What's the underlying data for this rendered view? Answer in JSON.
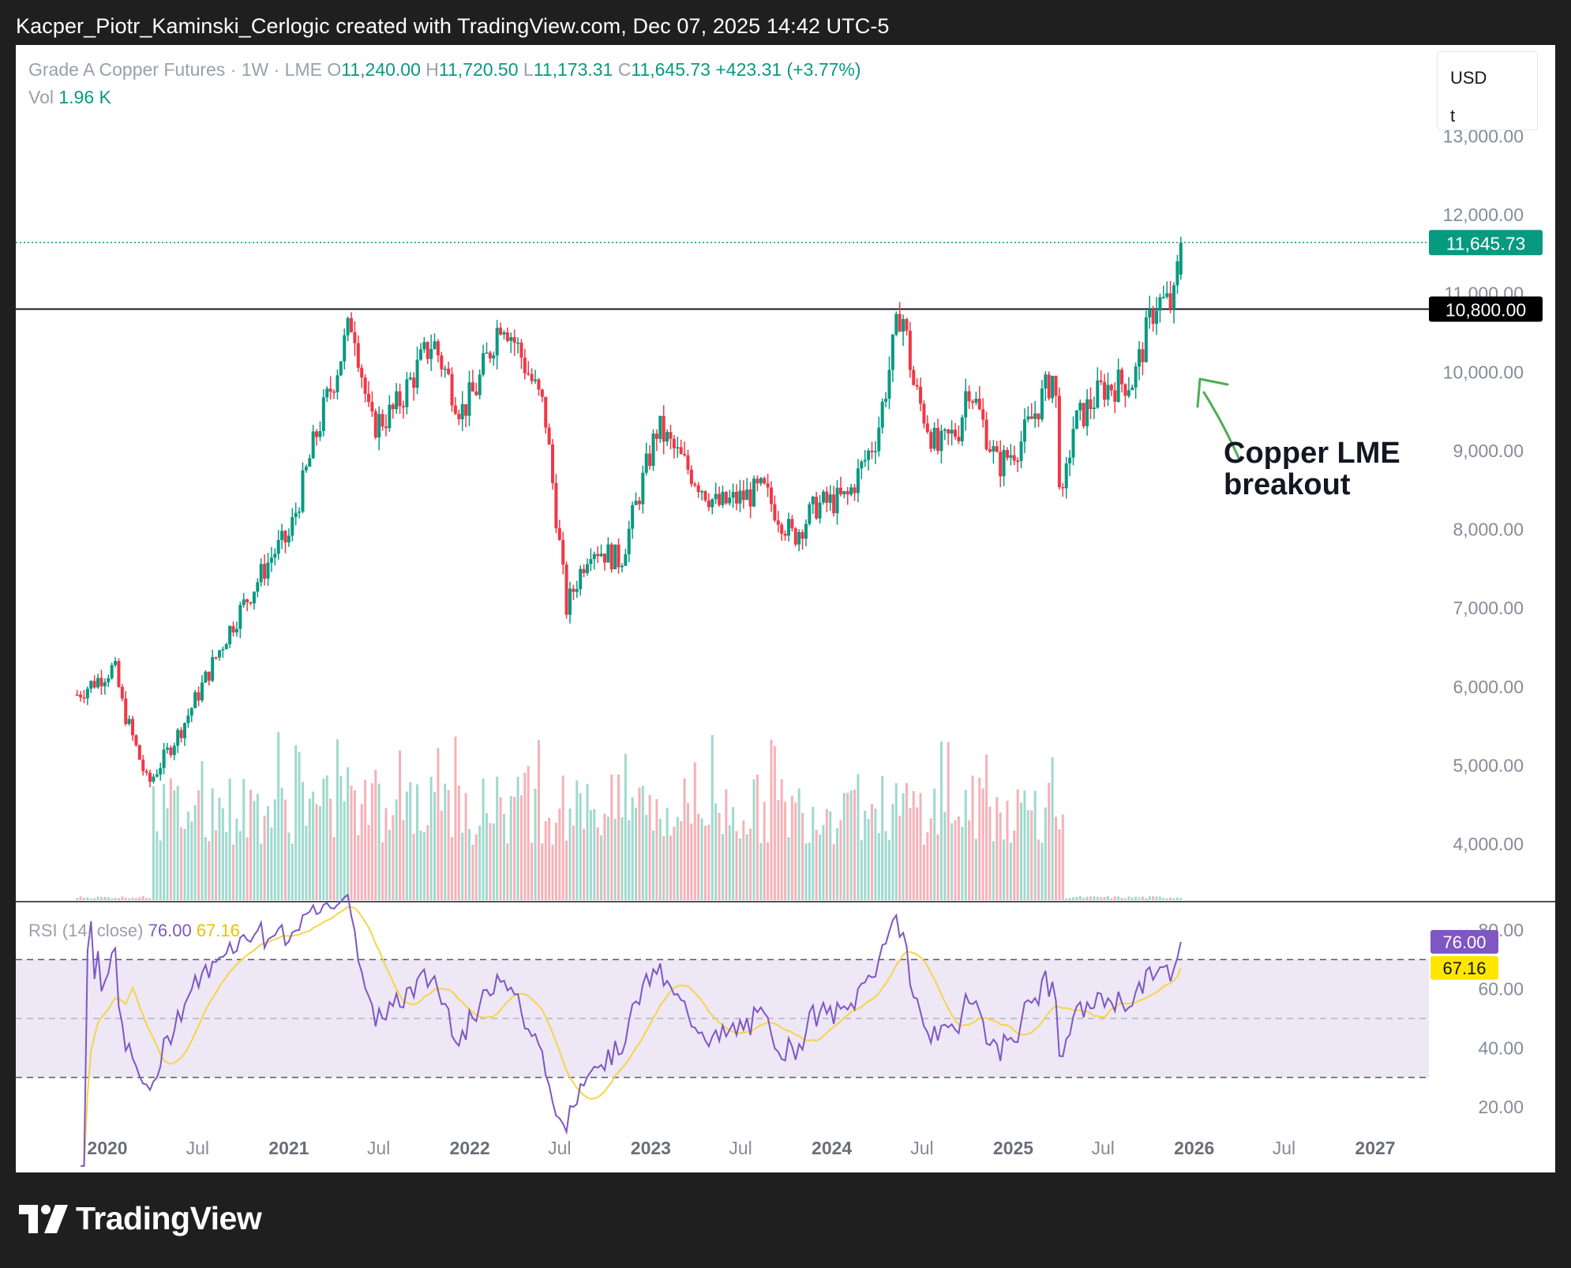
{
  "header": {
    "caption": "Kacper_Piotr_Kaminski_Cerlogic created with TradingView.com, Dec 07, 2025 14:42 UTC-5"
  },
  "legend": {
    "symbol": "Grade A Copper Futures · 1W · LME",
    "o_label": "O",
    "o_value": "11,240.00",
    "h_label": "H",
    "h_value": "11,720.50",
    "l_label": "L",
    "l_value": "11,173.31",
    "c_label": "C",
    "c_value": "11,645.73",
    "change": "+423.31 (+3.77%)",
    "vol_label": "Vol",
    "vol_value": "1.96 K"
  },
  "unit_box": {
    "currency": "USD",
    "unit": "t"
  },
  "rsi_legend": {
    "label": "RSI (14, close)",
    "rsi_value": "76.00",
    "ma_value": "67.16"
  },
  "annotation": {
    "text": "Copper LME\nbreakout"
  },
  "footer": {
    "brand": "TradingView"
  },
  "colors": {
    "up": "#089981",
    "down": "#f23645",
    "rsi": "#7e57c2",
    "rsi_ma": "#f5d547",
    "rsi_band": "#ede7f6",
    "arrow": "#4caf50"
  },
  "chart_data": {
    "type": "candlestick",
    "title": "Grade A Copper Futures · 1W · LME",
    "ylim": [
      3400,
      13600
    ],
    "y_ticks": [
      "13,000.00",
      "12,000.00",
      "11,000.00",
      "10,000.00",
      "9,000.00",
      "8,000.00",
      "7,000.00",
      "6,000.00",
      "5,000.00",
      "4,000.00"
    ],
    "x_ticks": [
      "2020",
      "Jul",
      "2021",
      "Jul",
      "2022",
      "Jul",
      "2023",
      "Jul",
      "2024",
      "Jul",
      "2025",
      "Jul",
      "2026",
      "Jul",
      "2027"
    ],
    "last_price_label": "11,645.73",
    "resistance_level": 10800,
    "resistance_label": "10,800.00",
    "price_path": [
      [
        "2019-11-01",
        5900
      ],
      [
        "2020-01-15",
        6250
      ],
      [
        "2020-02-01",
        5750
      ],
      [
        "2020-03-23",
        4750
      ],
      [
        "2020-06-01",
        5500
      ],
      [
        "2020-09-01",
        6700
      ],
      [
        "2020-12-01",
        7700
      ],
      [
        "2021-01-01",
        7900
      ],
      [
        "2021-02-25",
        9200
      ],
      [
        "2021-05-10",
        10700
      ],
      [
        "2021-06-15",
        9300
      ],
      [
        "2021-08-01",
        9500
      ],
      [
        "2021-10-18",
        10400
      ],
      [
        "2021-12-15",
        9500
      ],
      [
        "2022-01-15",
        9800
      ],
      [
        "2022-03-07",
        10730
      ],
      [
        "2022-04-15",
        10200
      ],
      [
        "2022-06-01",
        9500
      ],
      [
        "2022-07-15",
        7000
      ],
      [
        "2022-09-01",
        7800
      ],
      [
        "2022-11-01",
        7600
      ],
      [
        "2023-01-15",
        9300
      ],
      [
        "2023-03-01",
        8900
      ],
      [
        "2023-05-15",
        8300
      ],
      [
        "2023-07-01",
        8400
      ],
      [
        "2023-08-15",
        8500
      ],
      [
        "2023-10-15",
        7900
      ],
      [
        "2023-12-01",
        8300
      ],
      [
        "2024-02-01",
        8400
      ],
      [
        "2024-04-01",
        9200
      ],
      [
        "2024-05-20",
        10850
      ],
      [
        "2024-06-15",
        9800
      ],
      [
        "2024-08-01",
        9000
      ],
      [
        "2024-09-15",
        9300
      ],
      [
        "2024-10-01",
        9900
      ],
      [
        "2024-12-01",
        8800
      ],
      [
        "2025-01-15",
        9100
      ],
      [
        "2025-03-25",
        10000
      ],
      [
        "2025-04-08",
        8200
      ],
      [
        "2025-05-01",
        9300
      ],
      [
        "2025-07-01",
        9800
      ],
      [
        "2025-09-01",
        9900
      ],
      [
        "2025-10-15",
        10900
      ],
      [
        "2025-11-20",
        10850
      ],
      [
        "2025-12-05",
        11645.73
      ]
    ],
    "last_candle": {
      "open": 11240.0,
      "high": 11720.5,
      "low": 11173.31,
      "close": 11645.73,
      "change": 423.31,
      "change_pct": 3.77
    },
    "volume": {
      "last": "1.96 K",
      "max_label_approx": 6000,
      "data_start": "2020-04-01",
      "data_end": "2025-04-15"
    },
    "rsi": {
      "period": 14,
      "ylim": [
        10,
        95
      ],
      "y_ticks": [
        "80.00",
        "60.00",
        "40.00",
        "20.00"
      ],
      "levels": [
        70,
        50,
        30
      ],
      "last_rsi": 76.0,
      "last_ma": 67.16
    }
  }
}
